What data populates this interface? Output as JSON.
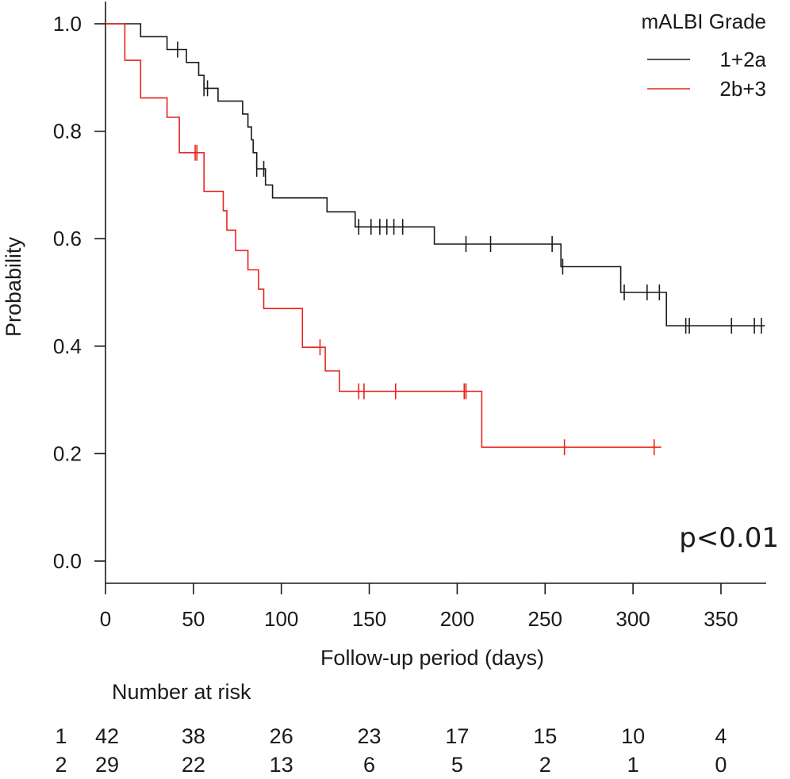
{
  "chart_data": {
    "type": "line",
    "subtype": "kaplan-meier",
    "xlabel": "Follow-up period (days)",
    "ylabel": "Probability",
    "xlim": [
      0,
      375
    ],
    "ylim": [
      0.0,
      1.0
    ],
    "xticks": [
      "0",
      "50",
      "100",
      "150",
      "200",
      "250",
      "300",
      "350"
    ],
    "yticks": [
      "0.0",
      "0.2",
      "0.4",
      "0.6",
      "0.8",
      "1.0"
    ],
    "grid": false,
    "legend": {
      "title": "mALBI Grade",
      "placement": "top-right"
    },
    "annotation": "p<0.01",
    "series": [
      {
        "name": "1+2a",
        "color": "#1a1a1a",
        "steps": [
          [
            0,
            1.0
          ],
          [
            20,
            0.976
          ],
          [
            35,
            0.952
          ],
          [
            46,
            0.928
          ],
          [
            53,
            0.904
          ],
          [
            56,
            0.88
          ],
          [
            64,
            0.856
          ],
          [
            78,
            0.832
          ],
          [
            81,
            0.808
          ],
          [
            83,
            0.784
          ],
          [
            84,
            0.76
          ],
          [
            86,
            0.73
          ],
          [
            91,
            0.7
          ],
          [
            95,
            0.676
          ],
          [
            126,
            0.65
          ],
          [
            142,
            0.622
          ],
          [
            187,
            0.59
          ],
          [
            259,
            0.548
          ],
          [
            293,
            0.5
          ],
          [
            319,
            0.438
          ],
          [
            375,
            0.438
          ]
        ],
        "censor": [
          [
            41,
            0.952
          ],
          [
            56,
            0.88
          ],
          [
            58,
            0.88
          ],
          [
            86,
            0.73
          ],
          [
            90,
            0.73
          ],
          [
            144,
            0.622
          ],
          [
            151,
            0.622
          ],
          [
            156,
            0.622
          ],
          [
            160,
            0.622
          ],
          [
            164,
            0.622
          ],
          [
            169,
            0.622
          ],
          [
            205,
            0.59
          ],
          [
            219,
            0.59
          ],
          [
            254,
            0.59
          ],
          [
            260,
            0.548
          ],
          [
            295,
            0.5
          ],
          [
            308,
            0.5
          ],
          [
            315,
            0.5
          ],
          [
            330,
            0.438
          ],
          [
            332,
            0.438
          ],
          [
            356,
            0.438
          ],
          [
            369,
            0.438
          ],
          [
            373,
            0.438
          ]
        ]
      },
      {
        "name": "2b+3",
        "color": "#e8231c",
        "steps": [
          [
            0,
            1.0
          ],
          [
            11,
            0.932
          ],
          [
            20,
            0.862
          ],
          [
            35,
            0.826
          ],
          [
            42,
            0.76
          ],
          [
            56,
            0.688
          ],
          [
            67,
            0.652
          ],
          [
            69,
            0.616
          ],
          [
            74,
            0.578
          ],
          [
            81,
            0.542
          ],
          [
            87,
            0.506
          ],
          [
            90,
            0.47
          ],
          [
            112,
            0.398
          ],
          [
            125,
            0.354
          ],
          [
            133,
            0.316
          ],
          [
            214,
            0.212
          ],
          [
            316,
            0.212
          ]
        ],
        "censor": [
          [
            51,
            0.76
          ],
          [
            52,
            0.76
          ],
          [
            122,
            0.398
          ],
          [
            144,
            0.316
          ],
          [
            147,
            0.316
          ],
          [
            165,
            0.316
          ],
          [
            204,
            0.316
          ],
          [
            205,
            0.316
          ],
          [
            261,
            0.212
          ],
          [
            312,
            0.212
          ]
        ]
      }
    ],
    "risk_table": {
      "title": "Number at risk",
      "rows": [
        {
          "label": "1",
          "values": [
            "42",
            "38",
            "26",
            "23",
            "17",
            "15",
            "10",
            "4"
          ]
        },
        {
          "label": "2",
          "values": [
            "29",
            "22",
            "13",
            "6",
            "5",
            "2",
            "1",
            "0"
          ]
        }
      ]
    }
  }
}
